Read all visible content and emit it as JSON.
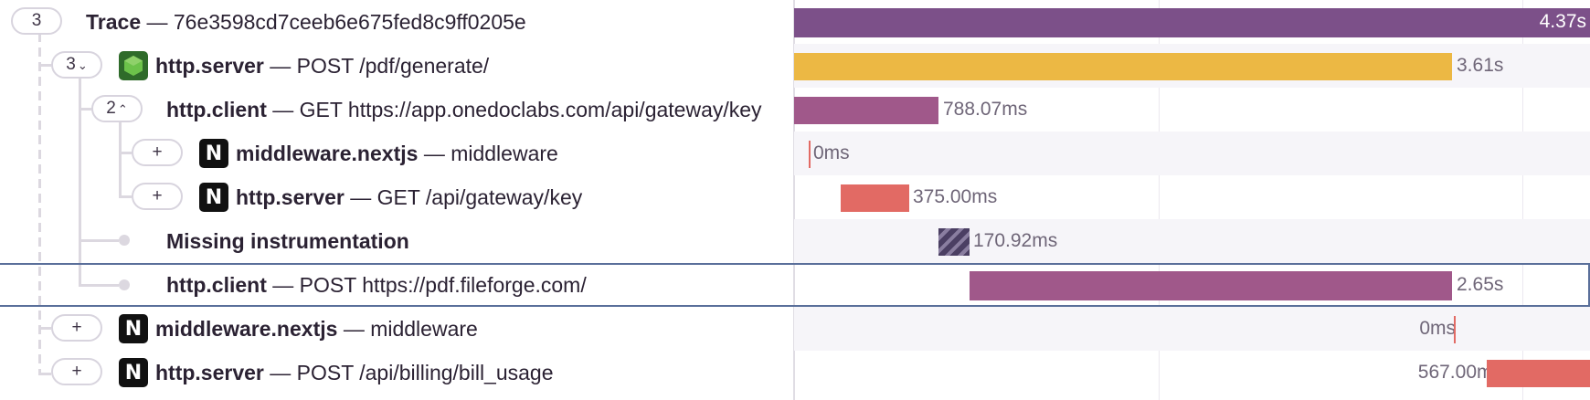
{
  "trace": {
    "title": "Trace",
    "sep": "—",
    "trace_id": "76e3598cd7ceeb6e675fed8c9ff0205e",
    "root_children_count": "3",
    "total_duration": "4.37s"
  },
  "spans": [
    {
      "op": "http.server",
      "desc": "POST /pdf/generate/",
      "duration": "3.61s",
      "toggle": "3",
      "toggle_icon": "chevron-down-icon",
      "icon": "nodejs-icon",
      "color": "#ecb844"
    },
    {
      "op": "http.client",
      "desc": "GET https://app.onedoclabs.com/api/gateway/key",
      "duration": "788.07ms",
      "toggle": "2",
      "toggle_icon": "chevron-up-icon",
      "color": "#a0588a"
    },
    {
      "op": "middleware.nextjs",
      "desc": "middleware",
      "duration": "0ms",
      "toggle": "+",
      "icon": "nextjs-icon",
      "color": "#e26a64"
    },
    {
      "op": "http.server",
      "desc": "GET /api/gateway/key",
      "duration": "375.00ms",
      "toggle": "+",
      "icon": "nextjs-icon",
      "color": "#e26a64"
    },
    {
      "op": "Missing instrumentation",
      "desc": "",
      "duration": "170.92ms",
      "color": "#4b3f63"
    },
    {
      "op": "http.client",
      "desc": "POST https://pdf.fileforge.com/",
      "duration": "2.65s",
      "selected": true,
      "color": "#a0588a"
    },
    {
      "op": "middleware.nextjs",
      "desc": "middleware",
      "duration": "0ms",
      "toggle": "+",
      "icon": "nextjs-icon",
      "color": "#e26a64"
    },
    {
      "op": "http.server",
      "desc": "POST /api/billing/bill_usage",
      "duration": "567.00ms",
      "toggle": "+",
      "icon": "nextjs-icon",
      "color": "#e26a64"
    }
  ],
  "colors": {
    "root_bar": "#7c5089",
    "selection": "#5a6f9a"
  }
}
